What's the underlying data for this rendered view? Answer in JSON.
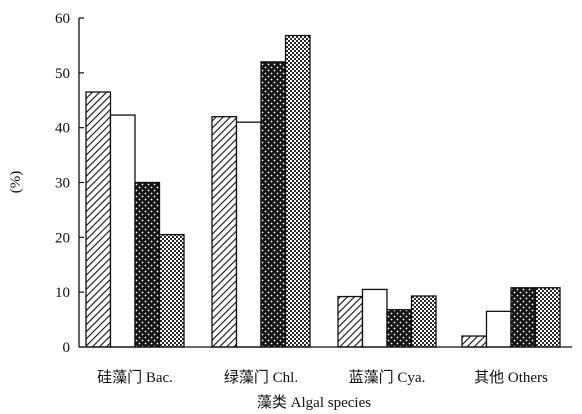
{
  "chart_data": {
    "type": "bar",
    "title": "",
    "xlabel": "藻类 Algal species",
    "ylabel": "(%)",
    "ylim": [
      0,
      60
    ],
    "yticks": [
      "0",
      "10",
      "20",
      "30",
      "40",
      "50",
      "60"
    ],
    "categories": [
      "硅藻门 Bac.",
      "绿藻门 Chl.",
      "蓝藻门 Cya.",
      "其他 Others"
    ],
    "series": [
      {
        "values": [
          46.5,
          42.0,
          9.2,
          2.0
        ],
        "pattern": "diagonal-hatch"
      },
      {
        "values": [
          42.3,
          41.0,
          10.5,
          6.5
        ],
        "pattern": "white"
      },
      {
        "values": [
          30.0,
          52.0,
          6.8,
          10.8
        ],
        "pattern": "dark-dotted"
      },
      {
        "values": [
          20.5,
          56.8,
          9.3,
          10.8
        ],
        "pattern": "light-checker"
      }
    ],
    "grid": false,
    "legend": "none"
  }
}
